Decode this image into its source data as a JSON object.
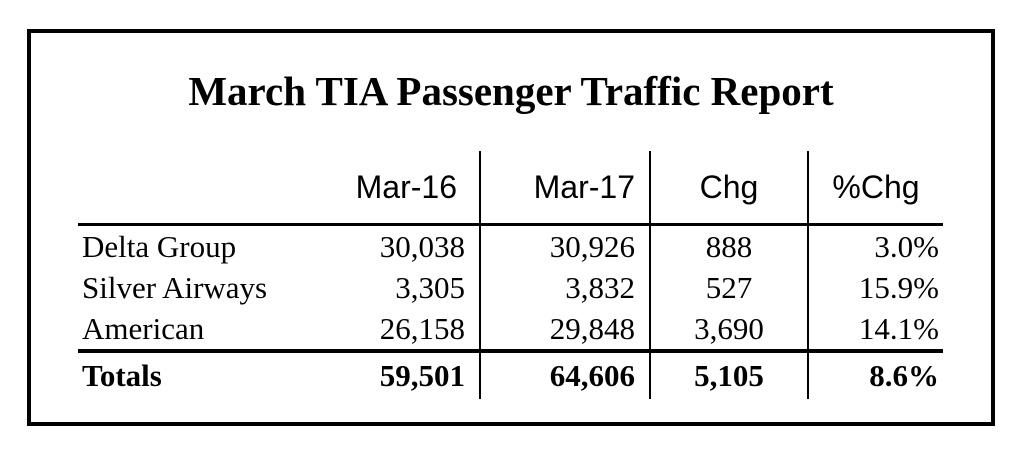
{
  "report": {
    "title": "March TIA Passenger Traffic Report",
    "columns": [
      "",
      "Mar-16",
      "Mar-17",
      "Chg",
      "%Chg"
    ],
    "rows": [
      {
        "name": "Delta Group",
        "mar16": "30,038",
        "mar17": "30,926",
        "chg": "888",
        "pct": "3.0%"
      },
      {
        "name": "Silver Airways",
        "mar16": "3,305",
        "mar17": "3,832",
        "chg": "527",
        "pct": "15.9%"
      },
      {
        "name": "American",
        "mar16": "26,158",
        "mar17": "29,848",
        "chg": "3,690",
        "pct": "14.1%"
      }
    ],
    "totals": {
      "name": "Totals",
      "mar16": "59,501",
      "mar17": "64,606",
      "chg": "5,105",
      "pct": "8.6%"
    }
  }
}
